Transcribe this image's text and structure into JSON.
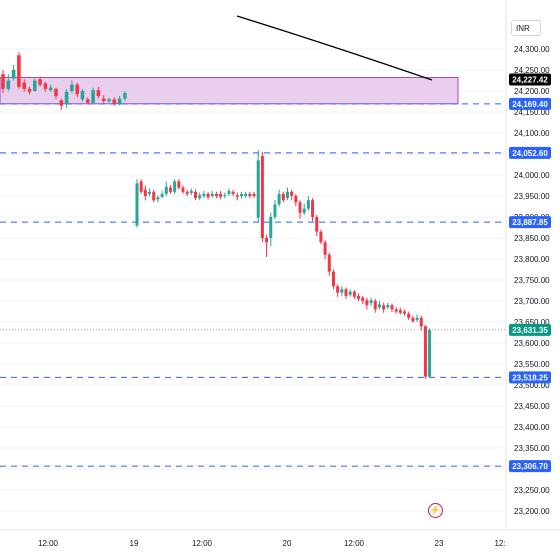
{
  "currency_label": "INR",
  "bolt_icon_glyph": "⚡",
  "colors": {
    "up": "#26a69a",
    "down": "#f23645",
    "level_line": "#2962ff",
    "zone_fill": "#e1bee7",
    "trend_line": "#000000",
    "grid": "#f0f3fa"
  },
  "chart_data": {
    "type": "candlestick",
    "title": "",
    "y_axis": {
      "position": "right",
      "range": [
        23170,
        24360
      ],
      "ticks": [
        "24,300.00",
        "24,250.00",
        "24,200.00",
        "24,150.00",
        "24,100.00",
        "24,050.00",
        "24,000.00",
        "23,950.00",
        "23,900.00",
        "23,850.00",
        "23,800.00",
        "23,750.00",
        "23,700.00",
        "23,650.00",
        "23,600.00",
        "23,550.00",
        "23,500.00",
        "23,450.00",
        "23,400.00",
        "23,350.00",
        "23,300.00",
        "23,250.00",
        "23,200.00"
      ]
    },
    "x_axis": {
      "ticks": [
        "12:00",
        "19",
        "12:00",
        "20",
        "12:00",
        "23",
        "12:"
      ]
    },
    "price_levels": [
      {
        "label": "24,227.42",
        "value": 24227.42,
        "style": "current-trendline",
        "color": "#000000"
      },
      {
        "label": "24,169.40",
        "value": 24169.4,
        "style": "dashed",
        "color": "#2962ff"
      },
      {
        "label": "24,052.60",
        "value": 24052.6,
        "style": "dashed",
        "color": "#2962ff"
      },
      {
        "label": "23,887.85",
        "value": 23887.85,
        "style": "dashed",
        "color": "#2962ff"
      },
      {
        "label": "23,631.35",
        "value": 23631.35,
        "style": "last-price",
        "color": "#089981"
      },
      {
        "label": "23,518.25",
        "value": 23518.25,
        "style": "dashed",
        "color": "#2962ff"
      },
      {
        "label": "23,306.70",
        "value": 23306.7,
        "style": "dashed",
        "color": "#2962ff"
      }
    ],
    "zone": {
      "low": 24169.4,
      "high": 24232
    },
    "trend_line": {
      "from": 24280,
      "to": 24228
    },
    "candles": [
      {
        "o": 24240,
        "c": 24205,
        "h": 24250,
        "l": 24195
      },
      {
        "o": 24205,
        "c": 24225,
        "h": 24240,
        "l": 24200
      },
      {
        "o": 24230,
        "c": 24250,
        "h": 24262,
        "l": 24225
      },
      {
        "o": 24285,
        "c": 24210,
        "h": 24292,
        "l": 24205
      },
      {
        "o": 24220,
        "c": 24205,
        "h": 24228,
        "l": 24198
      },
      {
        "o": 24205,
        "c": 24198,
        "h": 24210,
        "l": 24192
      },
      {
        "o": 24200,
        "c": 24225,
        "h": 24230,
        "l": 24198
      },
      {
        "o": 24228,
        "c": 24215,
        "h": 24235,
        "l": 24210
      },
      {
        "o": 24218,
        "c": 24205,
        "h": 24222,
        "l": 24198
      },
      {
        "o": 24202,
        "c": 24208,
        "h": 24215,
        "l": 24198
      },
      {
        "o": 24205,
        "c": 24188,
        "h": 24208,
        "l": 24180
      },
      {
        "o": 24178,
        "c": 24165,
        "h": 24182,
        "l": 24155
      },
      {
        "o": 24168,
        "c": 24198,
        "h": 24205,
        "l": 24160
      },
      {
        "o": 24200,
        "c": 24215,
        "h": 24225,
        "l": 24195
      },
      {
        "o": 24215,
        "c": 24192,
        "h": 24220,
        "l": 24185
      },
      {
        "o": 24180,
        "c": 24200,
        "h": 24205,
        "l": 24175
      },
      {
        "o": 24180,
        "c": 24172,
        "h": 24185,
        "l": 24168
      },
      {
        "o": 24172,
        "c": 24202,
        "h": 24208,
        "l": 24168
      },
      {
        "o": 24202,
        "c": 24188,
        "h": 24210,
        "l": 24182
      },
      {
        "o": 24182,
        "c": 24176,
        "h": 24190,
        "l": 24170
      },
      {
        "o": 24176,
        "c": 24180,
        "h": 24184,
        "l": 24172
      },
      {
        "o": 24180,
        "c": 24170,
        "h": 24185,
        "l": 24165
      },
      {
        "o": 24170,
        "c": 24182,
        "h": 24188,
        "l": 24166
      },
      {
        "o": 24182,
        "c": 24195,
        "h": 24200,
        "l": 24175
      },
      {
        "gap": true
      },
      {
        "o": 23880,
        "c": 23980,
        "h": 23990,
        "l": 23875
      },
      {
        "o": 23985,
        "c": 23960,
        "h": 23990,
        "l": 23955
      },
      {
        "o": 23965,
        "c": 23950,
        "h": 23975,
        "l": 23940
      },
      {
        "o": 23955,
        "c": 23960,
        "h": 23968,
        "l": 23948
      },
      {
        "o": 23960,
        "c": 23940,
        "h": 23965,
        "l": 23935
      },
      {
        "o": 23942,
        "c": 23947,
        "h": 23952,
        "l": 23935
      },
      {
        "o": 23948,
        "c": 23955,
        "h": 23962,
        "l": 23945
      },
      {
        "o": 23955,
        "c": 23972,
        "h": 23985,
        "l": 23950
      },
      {
        "o": 23970,
        "c": 23960,
        "h": 23976,
        "l": 23955
      },
      {
        "o": 23960,
        "c": 23985,
        "h": 23990,
        "l": 23955
      },
      {
        "o": 23985,
        "c": 23970,
        "h": 23990,
        "l": 23965
      },
      {
        "o": 23970,
        "c": 23960,
        "h": 23975,
        "l": 23955
      },
      {
        "o": 23960,
        "c": 23955,
        "h": 23965,
        "l": 23950
      },
      {
        "o": 23957,
        "c": 23962,
        "h": 23968,
        "l": 23952
      },
      {
        "o": 23960,
        "c": 23945,
        "h": 23966,
        "l": 23940
      },
      {
        "o": 23945,
        "c": 23952,
        "h": 23958,
        "l": 23940
      },
      {
        "o": 23950,
        "c": 23955,
        "h": 23962,
        "l": 23945
      },
      {
        "o": 23955,
        "c": 23947,
        "h": 23960,
        "l": 23942
      },
      {
        "o": 23950,
        "c": 23955,
        "h": 23962,
        "l": 23946
      },
      {
        "o": 23955,
        "c": 23950,
        "h": 23960,
        "l": 23945
      },
      {
        "o": 23955,
        "c": 23948,
        "h": 23962,
        "l": 23942
      },
      {
        "o": 23950,
        "c": 23952,
        "h": 23958,
        "l": 23945
      },
      {
        "o": 23955,
        "c": 23962,
        "h": 23968,
        "l": 23950
      },
      {
        "o": 23960,
        "c": 23955,
        "h": 23965,
        "l": 23950
      },
      {
        "o": 23952,
        "c": 23948,
        "h": 23958,
        "l": 23940
      },
      {
        "o": 23950,
        "c": 23955,
        "h": 23960,
        "l": 23944
      },
      {
        "o": 23950,
        "c": 23955,
        "h": 23960,
        "l": 23945
      },
      {
        "o": 23955,
        "c": 23950,
        "h": 23960,
        "l": 23945
      },
      {
        "o": 23955,
        "c": 23950,
        "h": 23960,
        "l": 23945
      },
      {
        "o": 23898,
        "c": 24035,
        "h": 24060,
        "l": 23888
      },
      {
        "o": 24045,
        "c": 23850,
        "h": 24055,
        "l": 23840
      },
      {
        "o": 23850,
        "c": 23840,
        "h": 23858,
        "l": 23805
      },
      {
        "o": 23850,
        "c": 23900,
        "h": 23910,
        "l": 23830
      },
      {
        "o": 23900,
        "c": 23930,
        "h": 23940,
        "l": 23895
      },
      {
        "o": 23930,
        "c": 23955,
        "h": 23965,
        "l": 23925
      },
      {
        "o": 23955,
        "c": 23940,
        "h": 23960,
        "l": 23935
      },
      {
        "o": 23945,
        "c": 23960,
        "h": 23970,
        "l": 23940
      },
      {
        "o": 23960,
        "c": 23950,
        "h": 23965,
        "l": 23940
      },
      {
        "o": 23950,
        "c": 23935,
        "h": 23955,
        "l": 23925
      },
      {
        "o": 23935,
        "c": 23910,
        "h": 23940,
        "l": 23895
      },
      {
        "o": 23910,
        "c": 23920,
        "h": 23932,
        "l": 23905
      },
      {
        "o": 23920,
        "c": 23940,
        "h": 23950,
        "l": 23915
      },
      {
        "o": 23940,
        "c": 23900,
        "h": 23945,
        "l": 23890
      },
      {
        "o": 23900,
        "c": 23865,
        "h": 23905,
        "l": 23855
      },
      {
        "o": 23865,
        "c": 23840,
        "h": 23870,
        "l": 23835
      },
      {
        "o": 23840,
        "c": 23810,
        "h": 23845,
        "l": 23800
      },
      {
        "o": 23810,
        "c": 23770,
        "h": 23815,
        "l": 23760
      },
      {
        "o": 23770,
        "c": 23735,
        "h": 23775,
        "l": 23728
      },
      {
        "o": 23735,
        "c": 23720,
        "h": 23740,
        "l": 23710
      },
      {
        "o": 23720,
        "c": 23728,
        "h": 23735,
        "l": 23712
      },
      {
        "o": 23728,
        "c": 23712,
        "h": 23732,
        "l": 23705
      },
      {
        "o": 23715,
        "c": 23722,
        "h": 23728,
        "l": 23710
      },
      {
        "o": 23722,
        "c": 23710,
        "h": 23726,
        "l": 23705
      },
      {
        "o": 23712,
        "c": 23705,
        "h": 23718,
        "l": 23700
      },
      {
        "o": 23708,
        "c": 23700,
        "h": 23712,
        "l": 23692
      },
      {
        "o": 23702,
        "c": 23690,
        "h": 23708,
        "l": 23680
      },
      {
        "o": 23695,
        "c": 23702,
        "h": 23708,
        "l": 23688
      },
      {
        "o": 23700,
        "c": 23680,
        "h": 23705,
        "l": 23672
      },
      {
        "o": 23685,
        "c": 23692,
        "h": 23700,
        "l": 23680
      },
      {
        "o": 23690,
        "c": 23680,
        "h": 23696,
        "l": 23672
      },
      {
        "o": 23685,
        "c": 23690,
        "h": 23696,
        "l": 23680
      },
      {
        "o": 23690,
        "c": 23680,
        "h": 23694,
        "l": 23674
      },
      {
        "o": 23680,
        "c": 23675,
        "h": 23686,
        "l": 23670
      },
      {
        "o": 23678,
        "c": 23672,
        "h": 23684,
        "l": 23668
      },
      {
        "o": 23675,
        "c": 23670,
        "h": 23680,
        "l": 23665
      },
      {
        "o": 23670,
        "c": 23660,
        "h": 23675,
        "l": 23655
      },
      {
        "o": 23660,
        "c": 23652,
        "h": 23665,
        "l": 23648
      },
      {
        "o": 23655,
        "c": 23660,
        "h": 23668,
        "l": 23650
      },
      {
        "o": 23660,
        "c": 23640,
        "h": 23665,
        "l": 23630
      },
      {
        "o": 23640,
        "c": 23520,
        "h": 23642,
        "l": 23515
      },
      {
        "o": 23520,
        "c": 23631.35,
        "h": 23635,
        "l": 23518
      }
    ]
  }
}
